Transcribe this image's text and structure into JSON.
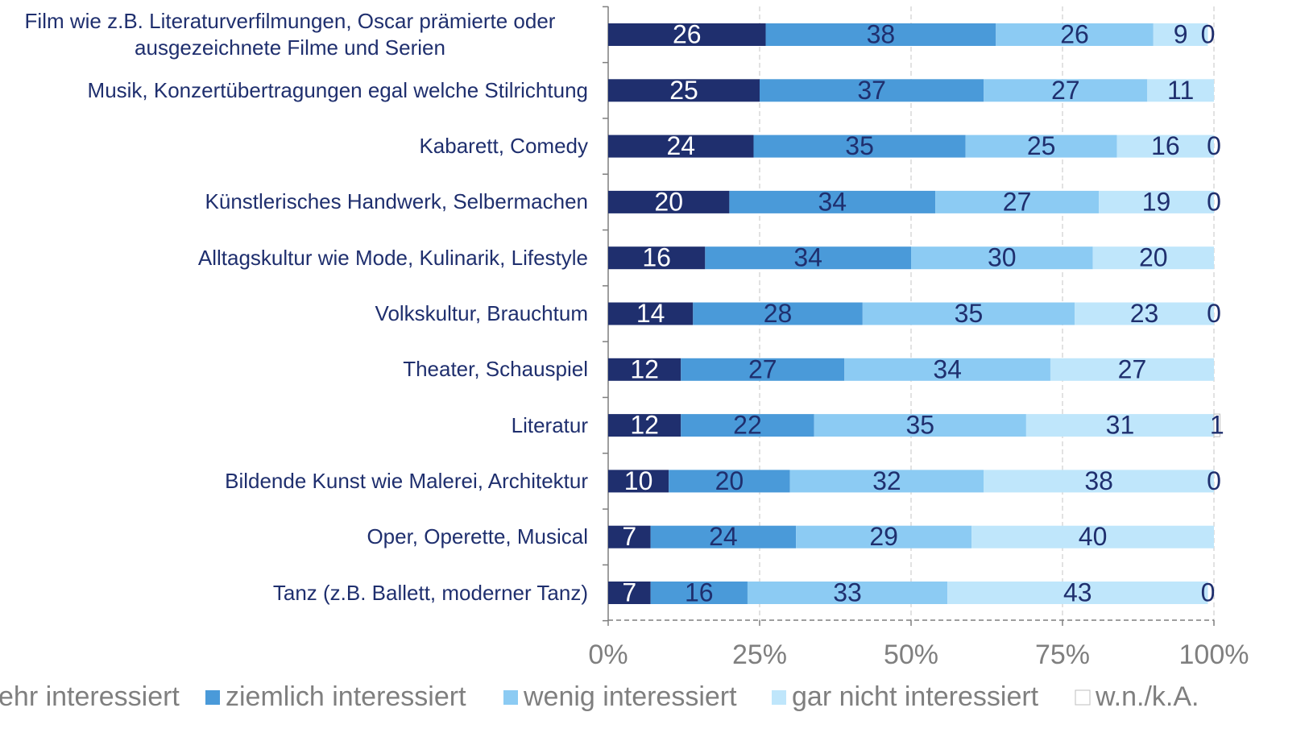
{
  "chart_data": {
    "type": "stacked-bar-horizontal",
    "categories": [
      "Film wie z.B. Literaturverfilmungen, Oscar prämierte oder ausgezeichnete Filme und Serien",
      "Musik, Konzertübertragungen egal welche Stilrichtung",
      "Kabarett, Comedy",
      "Künstlerisches Handwerk, Selbermachen",
      "Alltagskultur wie Mode, Kulinarik, Lifestyle",
      "Volkskultur, Brauchtum",
      "Theater, Schauspiel",
      "Literatur",
      "Bildende Kunst wie Malerei, Architektur",
      "Oper, Operette, Musical",
      "Tanz (z.B. Ballett, moderner Tanz)"
    ],
    "series": [
      {
        "name": "sehr interessiert",
        "color": "#1f2f6e",
        "values": [
          26,
          25,
          24,
          20,
          16,
          14,
          12,
          12,
          10,
          7,
          7
        ]
      },
      {
        "name": "ziemlich interessiert",
        "color": "#4a9ad9",
        "values": [
          38,
          37,
          35,
          34,
          34,
          28,
          27,
          22,
          20,
          24,
          16
        ]
      },
      {
        "name": "wenig interessiert",
        "color": "#8ccbf3",
        "values": [
          26,
          27,
          25,
          27,
          30,
          35,
          34,
          35,
          32,
          29,
          33
        ]
      },
      {
        "name": "gar nicht interessiert",
        "color": "#bfe6fb",
        "values": [
          9,
          11,
          16,
          19,
          20,
          23,
          27,
          31,
          38,
          40,
          43
        ]
      },
      {
        "name": "w.n./k.A.",
        "color": "#ffffff",
        "values": [
          0,
          null,
          0,
          0,
          null,
          0,
          null,
          1,
          0,
          null,
          0
        ]
      }
    ],
    "xlim": [
      0,
      100
    ],
    "xticks": [
      {
        "value": 0,
        "label": "0%"
      },
      {
        "value": 25,
        "label": "25%"
      },
      {
        "value": 50,
        "label": "50%"
      },
      {
        "value": 75,
        "label": "75%"
      },
      {
        "value": 100,
        "label": "100%"
      }
    ],
    "grid": true,
    "legend": "bottom"
  }
}
